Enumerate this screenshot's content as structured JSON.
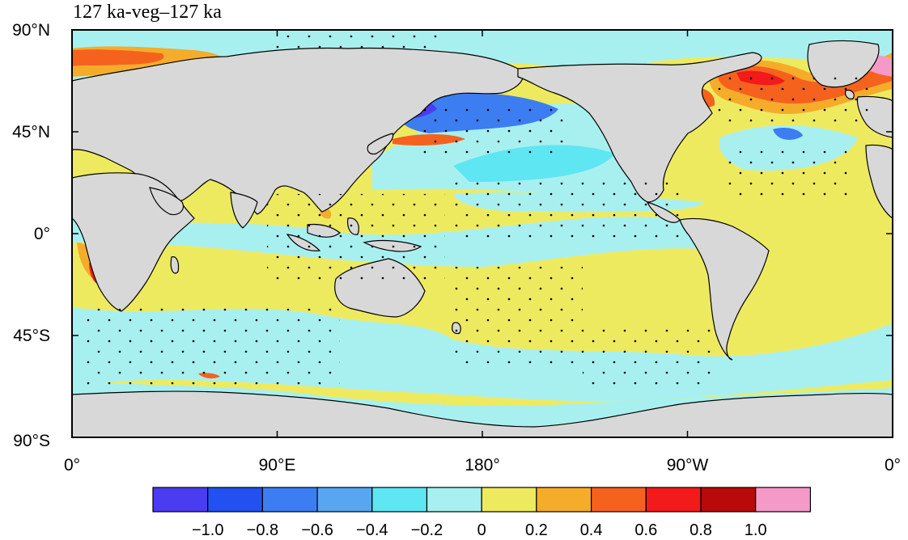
{
  "title": "127 ka-veg–127 ka",
  "lat_labels": [
    "90°N",
    "45°N",
    "0°",
    "45°S",
    "90°S"
  ],
  "lon_labels": [
    "0°",
    "90°E",
    "180°",
    "90°W",
    "0°"
  ],
  "colorbar": {
    "labels": [
      "−1.0",
      "−0.8",
      "−0.6",
      "−0.4",
      "−0.2",
      "0",
      "0.2",
      "0.4",
      "0.6",
      "0.8",
      "1.0"
    ],
    "colors": [
      "#4a3cf0",
      "#2350f0",
      "#3c7df2",
      "#58a6f2",
      "#5ee6f2",
      "#a8f0f0",
      "#eeea60",
      "#f5ac2a",
      "#f5621e",
      "#f21a1a",
      "#b80a0a",
      "#f59ac8"
    ]
  },
  "map_colors": {
    "land": "#d8d8d8",
    "ocean_base": "#eeea60",
    "light_blue": "#a8f0f0",
    "cyan": "#5ee6f2",
    "blue": "#3c7df2",
    "dark_blue": "#4a3cf0",
    "orange": "#f5ac2a",
    "red_orange": "#f5621e",
    "red": "#f21a1a",
    "pink": "#f59ac8"
  }
}
